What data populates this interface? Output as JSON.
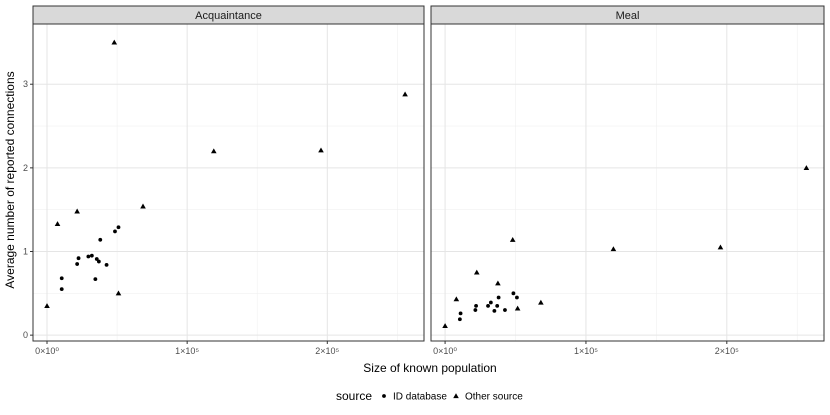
{
  "chart_data": {
    "type": "scatter",
    "xlabel": "Size of known population",
    "ylabel": "Average number of reported connections",
    "xlim": [
      -10000,
      269000
    ],
    "ylim": [
      -0.07,
      3.72
    ],
    "x_ticks": [
      0,
      100000,
      200000
    ],
    "x_tick_labels": [
      "0×10⁰",
      "1×10⁵",
      "2×10⁵"
    ],
    "y_ticks": [
      0,
      1,
      2,
      3
    ],
    "y_tick_labels": [
      "0",
      "1",
      "2",
      "3"
    ],
    "grid": true,
    "legend": {
      "title": "source",
      "position": "bottom",
      "entries": [
        {
          "label": "ID database",
          "shape": "circle"
        },
        {
          "label": "Other source",
          "shape": "triangle"
        }
      ]
    },
    "panels": [
      {
        "strip": "Acquaintance",
        "series": [
          {
            "name": "ID database",
            "shape": "circle",
            "points": [
              {
                "x": 10500,
                "y": 0.55
              },
              {
                "x": 10500,
                "y": 0.68
              },
              {
                "x": 21500,
                "y": 0.85
              },
              {
                "x": 22500,
                "y": 0.92
              },
              {
                "x": 29500,
                "y": 0.94
              },
              {
                "x": 32000,
                "y": 0.95
              },
              {
                "x": 34500,
                "y": 0.67
              },
              {
                "x": 35500,
                "y": 0.91
              },
              {
                "x": 37000,
                "y": 0.88
              },
              {
                "x": 38000,
                "y": 1.14
              },
              {
                "x": 42500,
                "y": 0.84
              },
              {
                "x": 48500,
                "y": 1.24
              },
              {
                "x": 51000,
                "y": 1.29
              }
            ]
          },
          {
            "name": "Other source",
            "shape": "triangle",
            "points": [
              {
                "x": 0,
                "y": 0.35
              },
              {
                "x": 7500,
                "y": 1.33
              },
              {
                "x": 21500,
                "y": 1.48
              },
              {
                "x": 48000,
                "y": 3.5
              },
              {
                "x": 51000,
                "y": 0.5
              },
              {
                "x": 68500,
                "y": 1.54
              },
              {
                "x": 119000,
                "y": 2.2
              },
              {
                "x": 195500,
                "y": 2.21
              },
              {
                "x": 255500,
                "y": 2.88
              }
            ]
          }
        ]
      },
      {
        "strip": "Meal",
        "series": [
          {
            "name": "ID database",
            "shape": "circle",
            "points": [
              {
                "x": 10500,
                "y": 0.19
              },
              {
                "x": 11000,
                "y": 0.26
              },
              {
                "x": 21500,
                "y": 0.3
              },
              {
                "x": 22000,
                "y": 0.35
              },
              {
                "x": 30500,
                "y": 0.35
              },
              {
                "x": 32500,
                "y": 0.39
              },
              {
                "x": 35000,
                "y": 0.29
              },
              {
                "x": 37000,
                "y": 0.35
              },
              {
                "x": 38000,
                "y": 0.45
              },
              {
                "x": 42500,
                "y": 0.3
              },
              {
                "x": 48500,
                "y": 0.5
              },
              {
                "x": 51000,
                "y": 0.45
              }
            ]
          },
          {
            "name": "Other source",
            "shape": "triangle",
            "points": [
              {
                "x": 0,
                "y": 0.11
              },
              {
                "x": 8000,
                "y": 0.43
              },
              {
                "x": 22500,
                "y": 0.75
              },
              {
                "x": 37500,
                "y": 0.62
              },
              {
                "x": 48000,
                "y": 1.14
              },
              {
                "x": 51500,
                "y": 0.32
              },
              {
                "x": 68000,
                "y": 0.39
              },
              {
                "x": 119500,
                "y": 1.03
              },
              {
                "x": 195500,
                "y": 1.05
              },
              {
                "x": 256500,
                "y": 2.0
              }
            ]
          }
        ]
      }
    ]
  }
}
